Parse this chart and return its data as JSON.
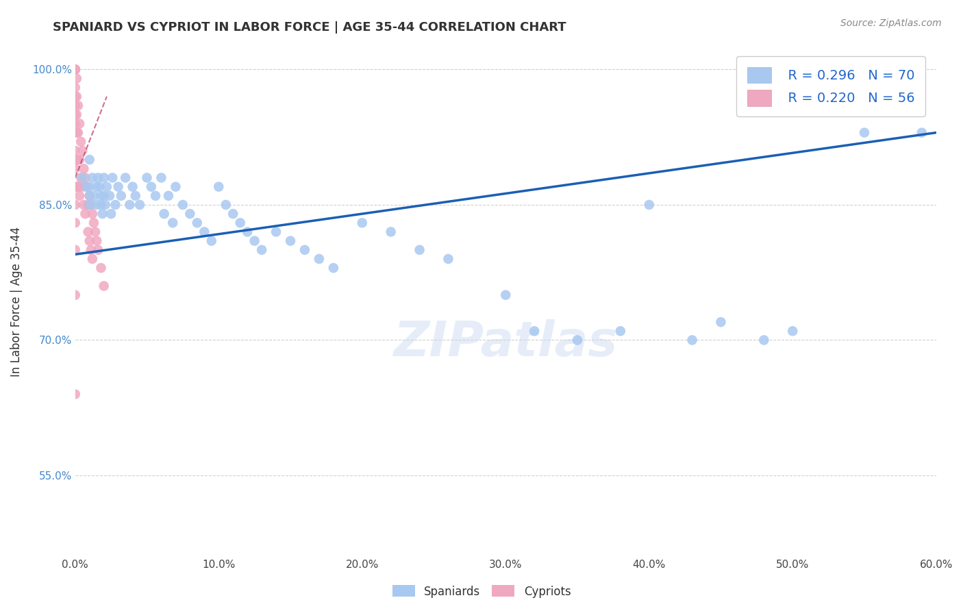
{
  "title": "SPANIARD VS CYPRIOT IN LABOR FORCE | AGE 35-44 CORRELATION CHART",
  "source": "Source: ZipAtlas.com",
  "ylabel": "In Labor Force | Age 35-44",
  "xmin": 0.0,
  "xmax": 0.6,
  "ymin": 0.46,
  "ymax": 1.025,
  "yticks": [
    0.55,
    0.7,
    0.85,
    1.0
  ],
  "ytick_labels": [
    "55.0%",
    "70.0%",
    "85.0%",
    "100.0%"
  ],
  "xticks": [
    0.0,
    0.1,
    0.2,
    0.3,
    0.4,
    0.5,
    0.6
  ],
  "xtick_labels": [
    "0.0%",
    "10.0%",
    "20.0%",
    "30.0%",
    "40.0%",
    "50.0%",
    "60.0%"
  ],
  "grid_yticks": [
    0.55,
    0.7,
    0.85,
    1.0
  ],
  "spaniard_color": "#a8c8f0",
  "cypriot_color": "#f0a8c0",
  "spaniard_line_color": "#1a5fb4",
  "cypriot_line_color": "#c04060",
  "legend_R_spaniard": "R = 0.296",
  "legend_N_spaniard": "N = 70",
  "legend_R_cypriot": "R = 0.220",
  "legend_N_cypriot": "N = 56",
  "watermark": "ZIPatlas",
  "spaniard_x": [
    0.005,
    0.008,
    0.01,
    0.01,
    0.01,
    0.01,
    0.012,
    0.013,
    0.015,
    0.015,
    0.016,
    0.017,
    0.018,
    0.018,
    0.019,
    0.02,
    0.02,
    0.021,
    0.022,
    0.024,
    0.025,
    0.026,
    0.028,
    0.03,
    0.032,
    0.035,
    0.038,
    0.04,
    0.042,
    0.045,
    0.05,
    0.053,
    0.056,
    0.06,
    0.062,
    0.065,
    0.068,
    0.07,
    0.075,
    0.08,
    0.085,
    0.09,
    0.095,
    0.1,
    0.105,
    0.11,
    0.115,
    0.12,
    0.125,
    0.13,
    0.14,
    0.15,
    0.16,
    0.17,
    0.18,
    0.2,
    0.22,
    0.24,
    0.26,
    0.3,
    0.32,
    0.35,
    0.38,
    0.4,
    0.43,
    0.45,
    0.48,
    0.5,
    0.55,
    0.59
  ],
  "spaniard_y": [
    0.88,
    0.87,
    0.9,
    0.87,
    0.86,
    0.85,
    0.88,
    0.86,
    0.87,
    0.85,
    0.88,
    0.87,
    0.86,
    0.85,
    0.84,
    0.88,
    0.86,
    0.85,
    0.87,
    0.86,
    0.84,
    0.88,
    0.85,
    0.87,
    0.86,
    0.88,
    0.85,
    0.87,
    0.86,
    0.85,
    0.88,
    0.87,
    0.86,
    0.88,
    0.84,
    0.86,
    0.83,
    0.87,
    0.85,
    0.84,
    0.83,
    0.82,
    0.81,
    0.87,
    0.85,
    0.84,
    0.83,
    0.82,
    0.81,
    0.8,
    0.82,
    0.81,
    0.8,
    0.79,
    0.78,
    0.83,
    0.82,
    0.8,
    0.79,
    0.75,
    0.71,
    0.7,
    0.71,
    0.85,
    0.7,
    0.72,
    0.7,
    0.71,
    0.93,
    0.93
  ],
  "cypriot_x": [
    0.0,
    0.0,
    0.0,
    0.0,
    0.0,
    0.0,
    0.0,
    0.0,
    0.0,
    0.0,
    0.0,
    0.0,
    0.0,
    0.0,
    0.0,
    0.0,
    0.0,
    0.0,
    0.0,
    0.0,
    0.001,
    0.001,
    0.001,
    0.001,
    0.001,
    0.001,
    0.002,
    0.002,
    0.002,
    0.002,
    0.003,
    0.003,
    0.003,
    0.004,
    0.004,
    0.005,
    0.005,
    0.006,
    0.006,
    0.007,
    0.007,
    0.008,
    0.009,
    0.009,
    0.01,
    0.01,
    0.011,
    0.011,
    0.012,
    0.012,
    0.013,
    0.014,
    0.015,
    0.016,
    0.018,
    0.02
  ],
  "cypriot_y": [
    1.0,
    1.0,
    1.0,
    1.0,
    1.0,
    1.0,
    0.98,
    0.97,
    0.96,
    0.95,
    0.94,
    0.93,
    0.91,
    0.89,
    0.87,
    0.85,
    0.83,
    0.8,
    0.75,
    0.64,
    0.99,
    0.97,
    0.95,
    0.93,
    0.9,
    0.87,
    0.96,
    0.93,
    0.9,
    0.87,
    0.94,
    0.9,
    0.86,
    0.92,
    0.88,
    0.91,
    0.87,
    0.89,
    0.85,
    0.88,
    0.84,
    0.87,
    0.85,
    0.82,
    0.86,
    0.81,
    0.85,
    0.8,
    0.84,
    0.79,
    0.83,
    0.82,
    0.81,
    0.8,
    0.78,
    0.76
  ],
  "sp_line_x": [
    0.0,
    0.6
  ],
  "sp_line_y": [
    0.795,
    0.93
  ],
  "cy_line_x": [
    0.0,
    0.022
  ],
  "cy_line_y": [
    0.88,
    0.97
  ]
}
